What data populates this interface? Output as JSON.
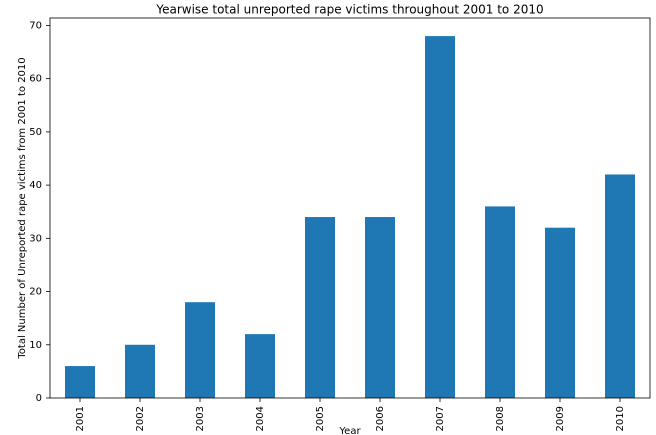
{
  "chart_data": {
    "type": "bar",
    "title": "Yearwise total unreported rape victims throughout 2001 to 2010",
    "x_label": "Year",
    "y_label": "Total Number of Unreported rape victims from 2001 to 2010",
    "categories": [
      "2001",
      "2002",
      "2003",
      "2004",
      "2005",
      "2006",
      "2007",
      "2008",
      "2009",
      "2010"
    ],
    "values": [
      6,
      10,
      18,
      12,
      34,
      34,
      68,
      36,
      32,
      42
    ],
    "color": "#1f77b4",
    "ylim": [
      0,
      71.4
    ],
    "yticks": [
      0,
      10,
      20,
      30,
      40,
      50,
      60,
      70
    ],
    "grid": false
  }
}
